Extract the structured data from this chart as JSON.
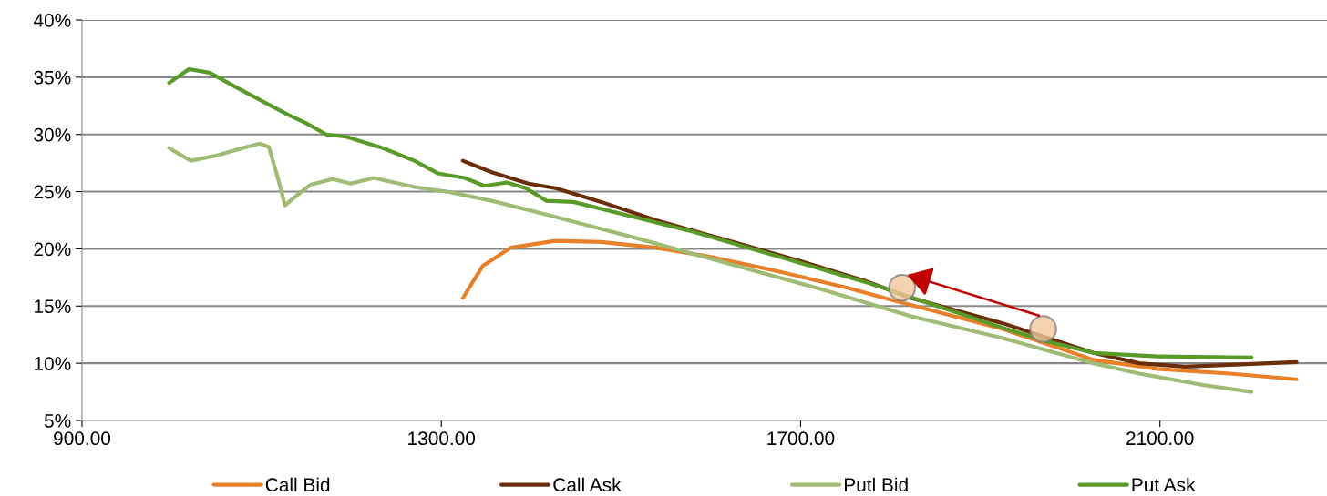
{
  "chart_data": {
    "type": "line",
    "xlim": [
      900,
      2286
    ],
    "xticks": [
      {
        "value": 900,
        "label": "900.00"
      },
      {
        "value": 1300,
        "label": "1300.00"
      },
      {
        "value": 1700,
        "label": "1700.00"
      },
      {
        "value": 2100,
        "label": "2100.00"
      }
    ],
    "ylim": [
      5,
      40
    ],
    "yticks": [
      {
        "value": 5,
        "label": "5%"
      },
      {
        "value": 10,
        "label": "10%"
      },
      {
        "value": 15,
        "label": "15%"
      },
      {
        "value": 20,
        "label": "20%"
      },
      {
        "value": 25,
        "label": "25%"
      },
      {
        "value": 30,
        "label": "30%"
      },
      {
        "value": 35,
        "label": "35%"
      },
      {
        "value": 40,
        "label": "40%"
      }
    ],
    "grid": "y",
    "legend": "bottom",
    "marker": "none",
    "line_style": "solid",
    "series": [
      {
        "name": "Call Bid",
        "color": "#e8802a",
        "x": [
          1324,
          1346,
          1377,
          1427,
          1478,
          1539,
          1600,
          1671,
          1752,
          1803,
          1925,
          2026,
          2097,
          2178,
          2252
        ],
        "values": [
          15.7,
          18.5,
          20.1,
          20.7,
          20.6,
          20.1,
          19.3,
          18.1,
          16.6,
          15.5,
          13.0,
          10.3,
          9.5,
          9.1,
          8.6
        ]
      },
      {
        "name": "Call Ask",
        "color": "#6b2e0a",
        "x": [
          1324,
          1356,
          1397,
          1427,
          1478,
          1539,
          1620,
          1701,
          1772,
          1823,
          1925,
          2026,
          2077,
          2128,
          2252
        ],
        "values": [
          27.7,
          26.7,
          25.7,
          25.3,
          24.1,
          22.5,
          20.7,
          18.9,
          17.2,
          15.7,
          13.5,
          10.9,
          10.0,
          9.7,
          10.1
        ]
      },
      {
        "name": "Putl Bid",
        "color": "#9fbb74",
        "x": [
          997,
          1021,
          1052,
          1083,
          1098,
          1108,
          1118,
          1126,
          1138,
          1154,
          1179,
          1199,
          1225,
          1270,
          1306,
          1356,
          1417,
          1519,
          1620,
          1722,
          1823,
          1925,
          2026,
          2077,
          2148,
          2202
        ],
        "values": [
          28.8,
          27.7,
          28.2,
          28.9,
          29.2,
          28.9,
          26.2,
          23.8,
          24.6,
          25.6,
          26.1,
          25.7,
          26.2,
          25.4,
          25.0,
          24.2,
          23.0,
          20.9,
          18.7,
          16.5,
          14.1,
          12.2,
          10.0,
          9.1,
          8.1,
          7.5
        ]
      },
      {
        "name": "Put Ask",
        "color": "#5a9a28",
        "x": [
          997,
          1019,
          1042,
          1072,
          1113,
          1130,
          1149,
          1172,
          1194,
          1235,
          1270,
          1296,
          1326,
          1348,
          1373,
          1394,
          1417,
          1447,
          1519,
          1580,
          1681,
          1772,
          1925,
          1975,
          2026,
          2097,
          2202
        ],
        "values": [
          34.5,
          35.7,
          35.4,
          34.1,
          32.4,
          31.7,
          31.0,
          30.0,
          29.8,
          28.8,
          27.7,
          26.6,
          26.2,
          25.5,
          25.8,
          25.3,
          24.2,
          24.1,
          22.7,
          21.5,
          19.2,
          17.1,
          13.1,
          11.9,
          10.9,
          10.6,
          10.5
        ]
      }
    ]
  }
}
